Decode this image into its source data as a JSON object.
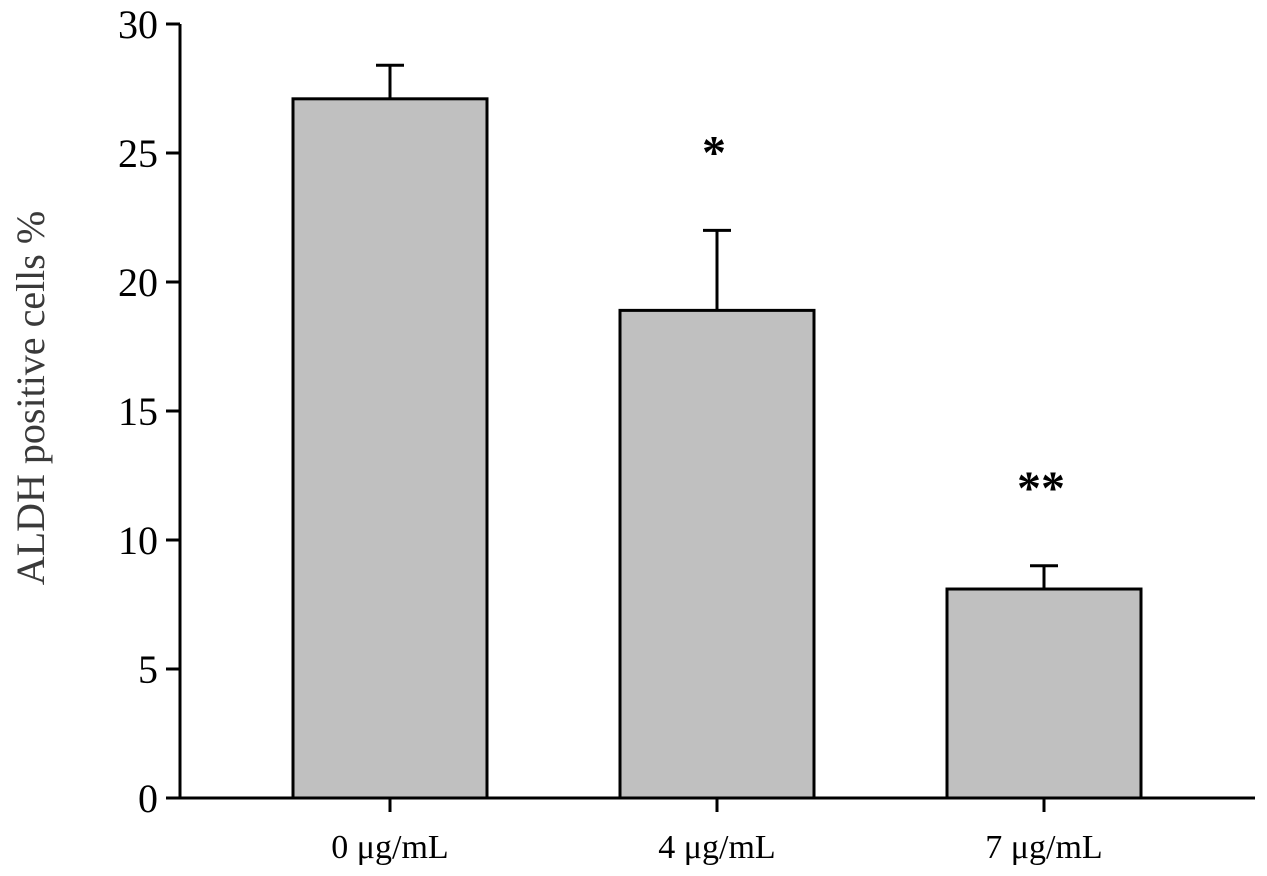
{
  "chart_data": {
    "type": "bar",
    "title": "",
    "xlabel": "",
    "ylabel": "ALDH positive cells %",
    "ylim": [
      0,
      30
    ],
    "yticks": [
      0,
      5,
      10,
      15,
      20,
      25,
      30
    ],
    "categories": [
      "0 μg/mL",
      "4 μg/mL",
      "7 μg/mL"
    ],
    "series": [
      {
        "values": [
          27.1,
          18.9,
          8.1
        ],
        "error_plus": [
          1.3,
          3.1,
          0.9
        ]
      }
    ],
    "annotations": [
      "",
      "*",
      "**"
    ],
    "grid": false,
    "legend": "none",
    "colors": {
      "bar_fill": "#c0c0c0",
      "bar_stroke": "#000000",
      "axis": "#000000",
      "ylabel": "#3a3a3a"
    }
  }
}
